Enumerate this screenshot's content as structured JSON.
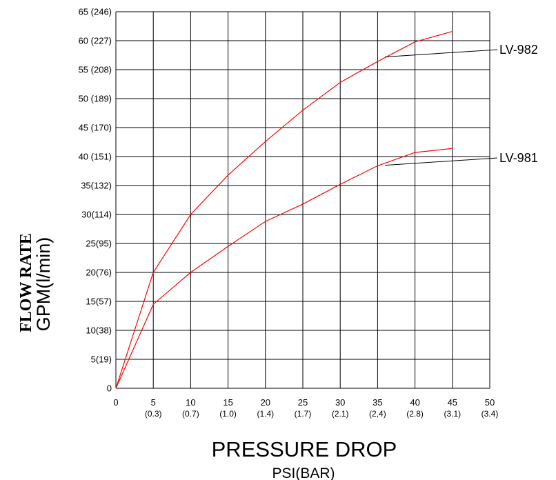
{
  "chart_data": {
    "type": "line",
    "title": "",
    "ylabel_bold": "FLOW RATE",
    "ylabel": "GPM(l/min)",
    "xlabel": "PRESSURE DROP",
    "xlabel_sub": "PSI(BAR)",
    "xlim": [
      0,
      50
    ],
    "ylim": [
      0,
      65
    ],
    "grid": true,
    "x_ticks": [
      {
        "value": 0,
        "label": "0",
        "sub": ""
      },
      {
        "value": 5,
        "label": "5",
        "sub": "(0.3)"
      },
      {
        "value": 10,
        "label": "10",
        "sub": "(0.7)"
      },
      {
        "value": 15,
        "label": "15",
        "sub": "(1.0)"
      },
      {
        "value": 20,
        "label": "20",
        "sub": "(1.4)"
      },
      {
        "value": 25,
        "label": "25",
        "sub": "(1.7)"
      },
      {
        "value": 30,
        "label": "30",
        "sub": "(2.1)"
      },
      {
        "value": 35,
        "label": "35",
        "sub": "(2,4)"
      },
      {
        "value": 40,
        "label": "40",
        "sub": "(2.8)"
      },
      {
        "value": 45,
        "label": "45",
        "sub": "(3.1)"
      },
      {
        "value": 50,
        "label": "50",
        "sub": "(3.4)"
      }
    ],
    "y_ticks": [
      {
        "value": 0,
        "label": "0"
      },
      {
        "value": 5,
        "label": "5(19)"
      },
      {
        "value": 10,
        "label": "10(38)"
      },
      {
        "value": 15,
        "label": "15(57)"
      },
      {
        "value": 20,
        "label": "20(76)"
      },
      {
        "value": 25,
        "label": "25(95)"
      },
      {
        "value": 30,
        "label": "30(114)"
      },
      {
        "value": 35,
        "label": "35(132)"
      },
      {
        "value": 40,
        "label": "40 (151)"
      },
      {
        "value": 45,
        "label": "45 (170)"
      },
      {
        "value": 50,
        "label": "50 (189)"
      },
      {
        "value": 55,
        "label": "55 (208)"
      },
      {
        "value": 60,
        "label": "60 (227)"
      },
      {
        "value": 65,
        "label": "65 (246)"
      }
    ],
    "series": [
      {
        "name": "LV-982",
        "color": "#ff0000",
        "x": [
          0,
          5,
          10,
          15,
          20,
          25,
          30,
          35,
          40,
          45
        ],
        "y": [
          0,
          20,
          30,
          36.8,
          42.6,
          48,
          52.8,
          56.4,
          59.8,
          61.6
        ],
        "leader_from": [
          36,
          57.2
        ]
      },
      {
        "name": "LV-981",
        "color": "#ff0000",
        "x": [
          0,
          5,
          10,
          15,
          20,
          25,
          30,
          35,
          40,
          45
        ],
        "y": [
          0,
          14.5,
          20,
          24.5,
          28.8,
          31.8,
          35.2,
          38.4,
          40.7,
          41.4
        ],
        "leader_from": [
          36,
          38.5
        ]
      }
    ]
  }
}
